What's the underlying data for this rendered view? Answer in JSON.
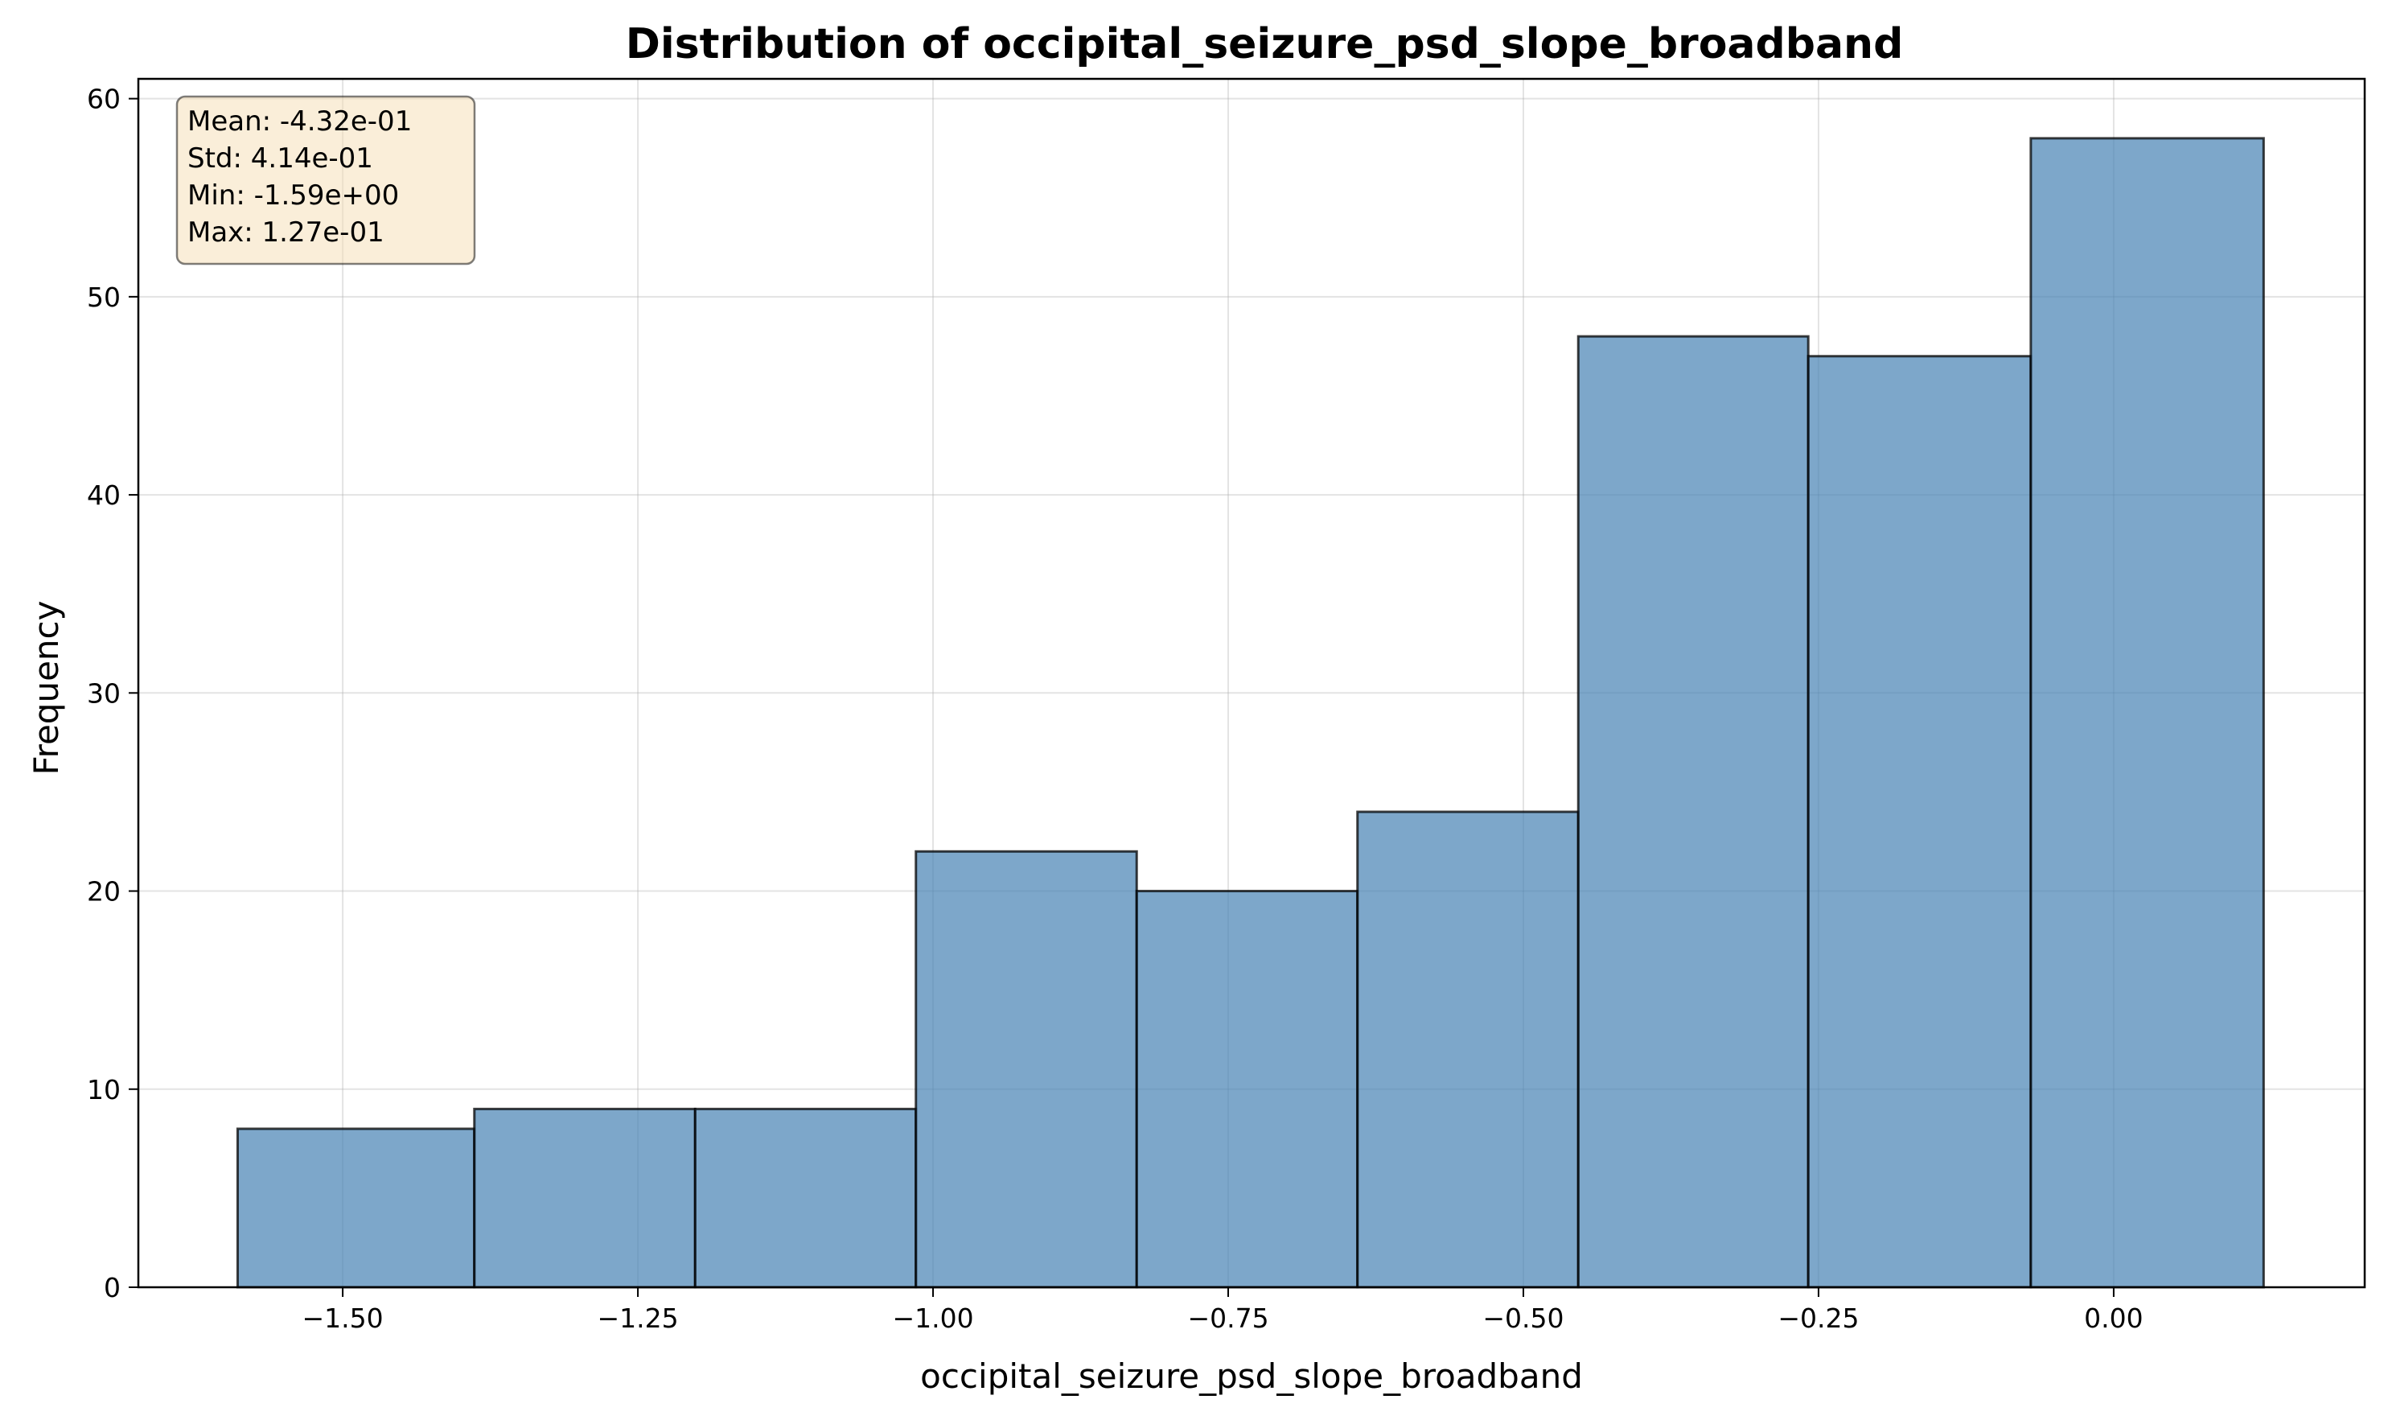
{
  "chart_data": {
    "type": "bar",
    "title": "Distribution of occipital_seizure_psd_slope_broadband",
    "xlabel": "occipital_seizure_psd_slope_broadband",
    "ylabel": "Frequency",
    "xlim": [
      -1.6731,
      0.2126
    ],
    "ylim": [
      0,
      61
    ],
    "xticks": [
      -1.5,
      -1.25,
      -1.0,
      -0.75,
      -0.5,
      -0.25,
      0.0
    ],
    "xtick_labels": [
      "−1.50",
      "−1.25",
      "−1.00",
      "−0.75",
      "−0.50",
      "−0.25",
      "0.00"
    ],
    "yticks": [
      0,
      10,
      20,
      30,
      40,
      50,
      60
    ],
    "ytick_labels": [
      "0",
      "10",
      "20",
      "30",
      "40",
      "50",
      "60"
    ],
    "bin_edges": [
      -1.589,
      -1.3885,
      -1.2015,
      -1.0145,
      -0.8275,
      -0.6405,
      -0.4535,
      -0.2587,
      -0.0702,
      0.127
    ],
    "values": [
      8,
      9,
      9,
      22,
      20,
      24,
      48,
      47,
      58
    ],
    "bar_color": "#4682b4",
    "bar_alpha": 0.7,
    "edge_color": "#000000",
    "grid": true,
    "stats_box": {
      "placement": "top-left",
      "background": "#f5deb3",
      "lines": [
        "Mean: -4.32e-01",
        "Std: 4.14e-01",
        "Min: -1.59e+00",
        "Max: 1.27e-01"
      ]
    }
  }
}
